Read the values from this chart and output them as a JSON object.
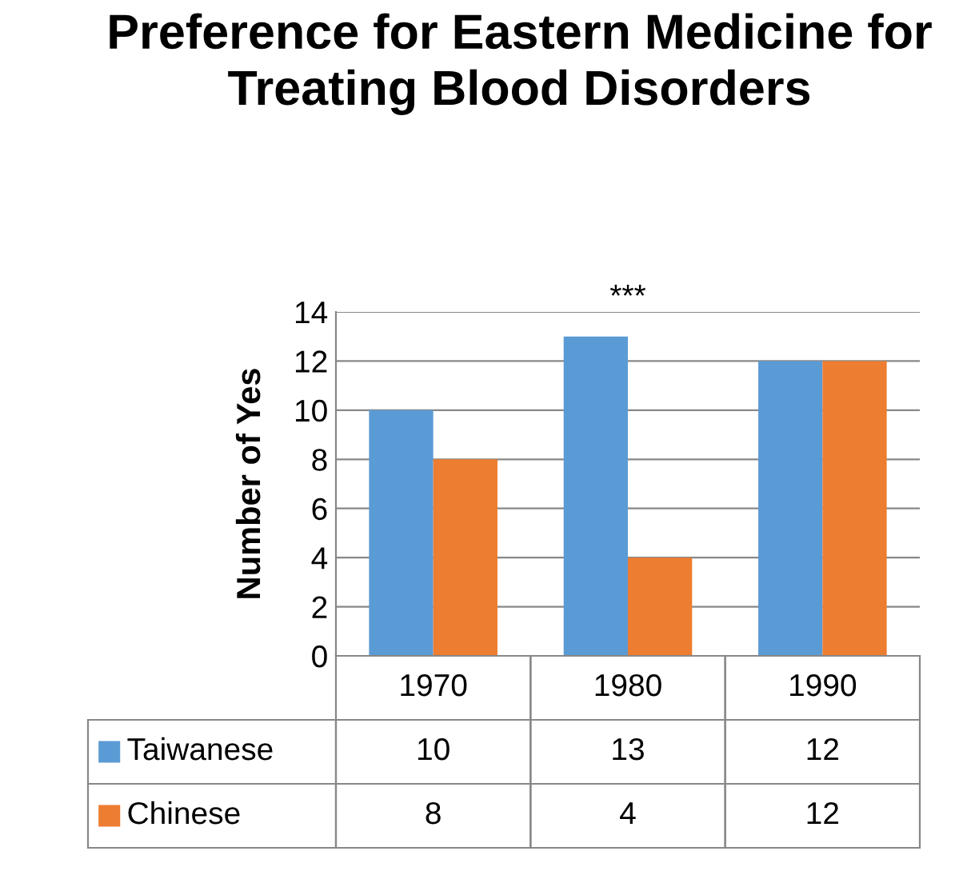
{
  "chart_data": {
    "type": "bar",
    "title": "Preference for Eastern Medicine for Treating Blood Disorders",
    "ylabel": "Number of Yes",
    "categories": [
      "1970",
      "1980",
      "1990"
    ],
    "series": [
      {
        "name": "Taiwanese",
        "color": "#5b9bd5",
        "values": [
          10,
          13,
          12
        ]
      },
      {
        "name": "Chinese",
        "color": "#ed7d31",
        "values": [
          8,
          4,
          12
        ]
      }
    ],
    "ylim": [
      0,
      14
    ],
    "yticks": [
      0,
      2,
      4,
      6,
      8,
      10,
      12,
      14
    ],
    "grid": "y",
    "data_labels": true,
    "legend": "bottom",
    "annotations": [
      "***"
    ]
  }
}
